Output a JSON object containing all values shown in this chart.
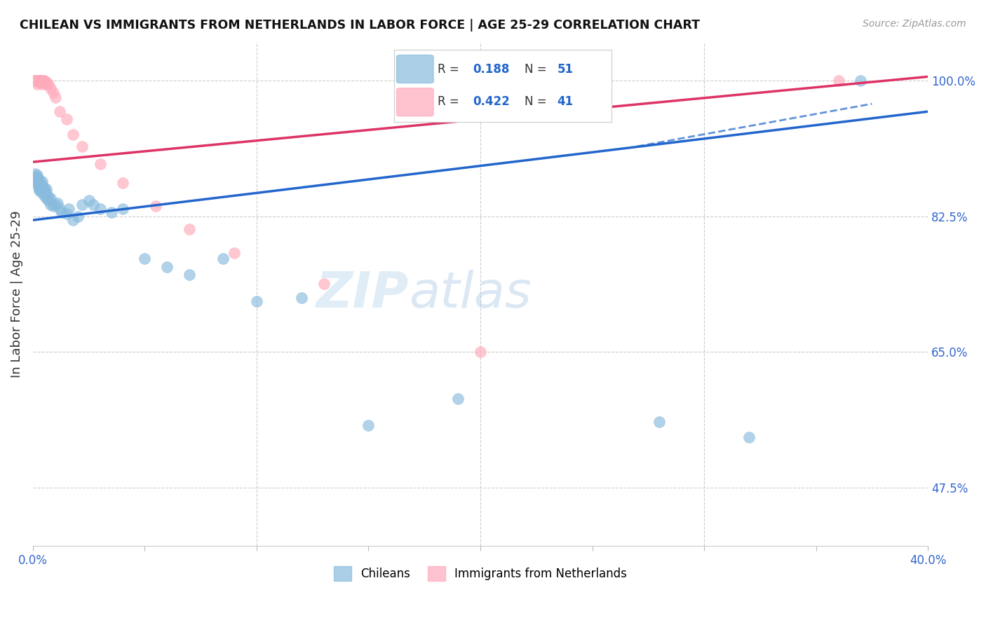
{
  "title": "CHILEAN VS IMMIGRANTS FROM NETHERLANDS IN LABOR FORCE | AGE 25-29 CORRELATION CHART",
  "source": "Source: ZipAtlas.com",
  "ylabel": "In Labor Force | Age 25-29",
  "xlim": [
    0.0,
    0.4
  ],
  "ylim": [
    0.4,
    1.05
  ],
  "blue_color": "#88bbdd",
  "pink_color": "#ffaabb",
  "trend_blue_color": "#2266cc",
  "trend_pink_color": "#dd3366",
  "watermark_zip": "ZIP",
  "watermark_atlas": "atlas",
  "blue_r": 0.188,
  "blue_n": 51,
  "pink_r": 0.422,
  "pink_n": 41,
  "blue_trend_x0": 0.0,
  "blue_trend_y0": 0.82,
  "blue_trend_x1": 0.4,
  "blue_trend_y1": 0.96,
  "pink_trend_x0": 0.0,
  "pink_trend_y0": 0.895,
  "pink_trend_x1": 0.4,
  "pink_trend_y1": 1.005,
  "blue_scatter_x": [
    0.001,
    0.001,
    0.001,
    0.002,
    0.002,
    0.002,
    0.002,
    0.003,
    0.003,
    0.003,
    0.003,
    0.003,
    0.004,
    0.004,
    0.004,
    0.005,
    0.005,
    0.005,
    0.006,
    0.006,
    0.006,
    0.007,
    0.007,
    0.008,
    0.008,
    0.009,
    0.01,
    0.011,
    0.012,
    0.013,
    0.015,
    0.016,
    0.018,
    0.02,
    0.022,
    0.025,
    0.027,
    0.03,
    0.035,
    0.04,
    0.05,
    0.06,
    0.07,
    0.085,
    0.1,
    0.12,
    0.15,
    0.19,
    0.28,
    0.32,
    0.37
  ],
  "blue_scatter_y": [
    0.88,
    0.87,
    0.875,
    0.875,
    0.87,
    0.878,
    0.865,
    0.868,
    0.862,
    0.872,
    0.858,
    0.86,
    0.87,
    0.865,
    0.855,
    0.862,
    0.858,
    0.852,
    0.855,
    0.848,
    0.86,
    0.85,
    0.845,
    0.848,
    0.84,
    0.838,
    0.84,
    0.842,
    0.835,
    0.83,
    0.828,
    0.835,
    0.82,
    0.825,
    0.84,
    0.845,
    0.84,
    0.835,
    0.83,
    0.835,
    0.77,
    0.76,
    0.75,
    0.77,
    0.715,
    0.72,
    0.555,
    0.59,
    0.56,
    0.54,
    1.0
  ],
  "pink_scatter_x": [
    0.001,
    0.001,
    0.001,
    0.001,
    0.002,
    0.002,
    0.002,
    0.002,
    0.002,
    0.002,
    0.002,
    0.003,
    0.003,
    0.003,
    0.003,
    0.003,
    0.003,
    0.004,
    0.004,
    0.004,
    0.005,
    0.005,
    0.005,
    0.006,
    0.006,
    0.007,
    0.008,
    0.009,
    0.01,
    0.012,
    0.015,
    0.018,
    0.022,
    0.03,
    0.04,
    0.055,
    0.07,
    0.09,
    0.13,
    0.2,
    0.36
  ],
  "pink_scatter_y": [
    1.0,
    1.0,
    1.0,
    1.0,
    1.0,
    1.0,
    1.0,
    1.0,
    0.995,
    1.0,
    1.0,
    1.0,
    1.0,
    1.0,
    1.0,
    1.0,
    0.998,
    1.0,
    1.0,
    0.995,
    1.0,
    1.0,
    0.998,
    0.998,
    0.995,
    0.995,
    0.99,
    0.985,
    0.978,
    0.96,
    0.95,
    0.93,
    0.915,
    0.892,
    0.868,
    0.838,
    0.808,
    0.778,
    0.738,
    0.65,
    1.0
  ]
}
